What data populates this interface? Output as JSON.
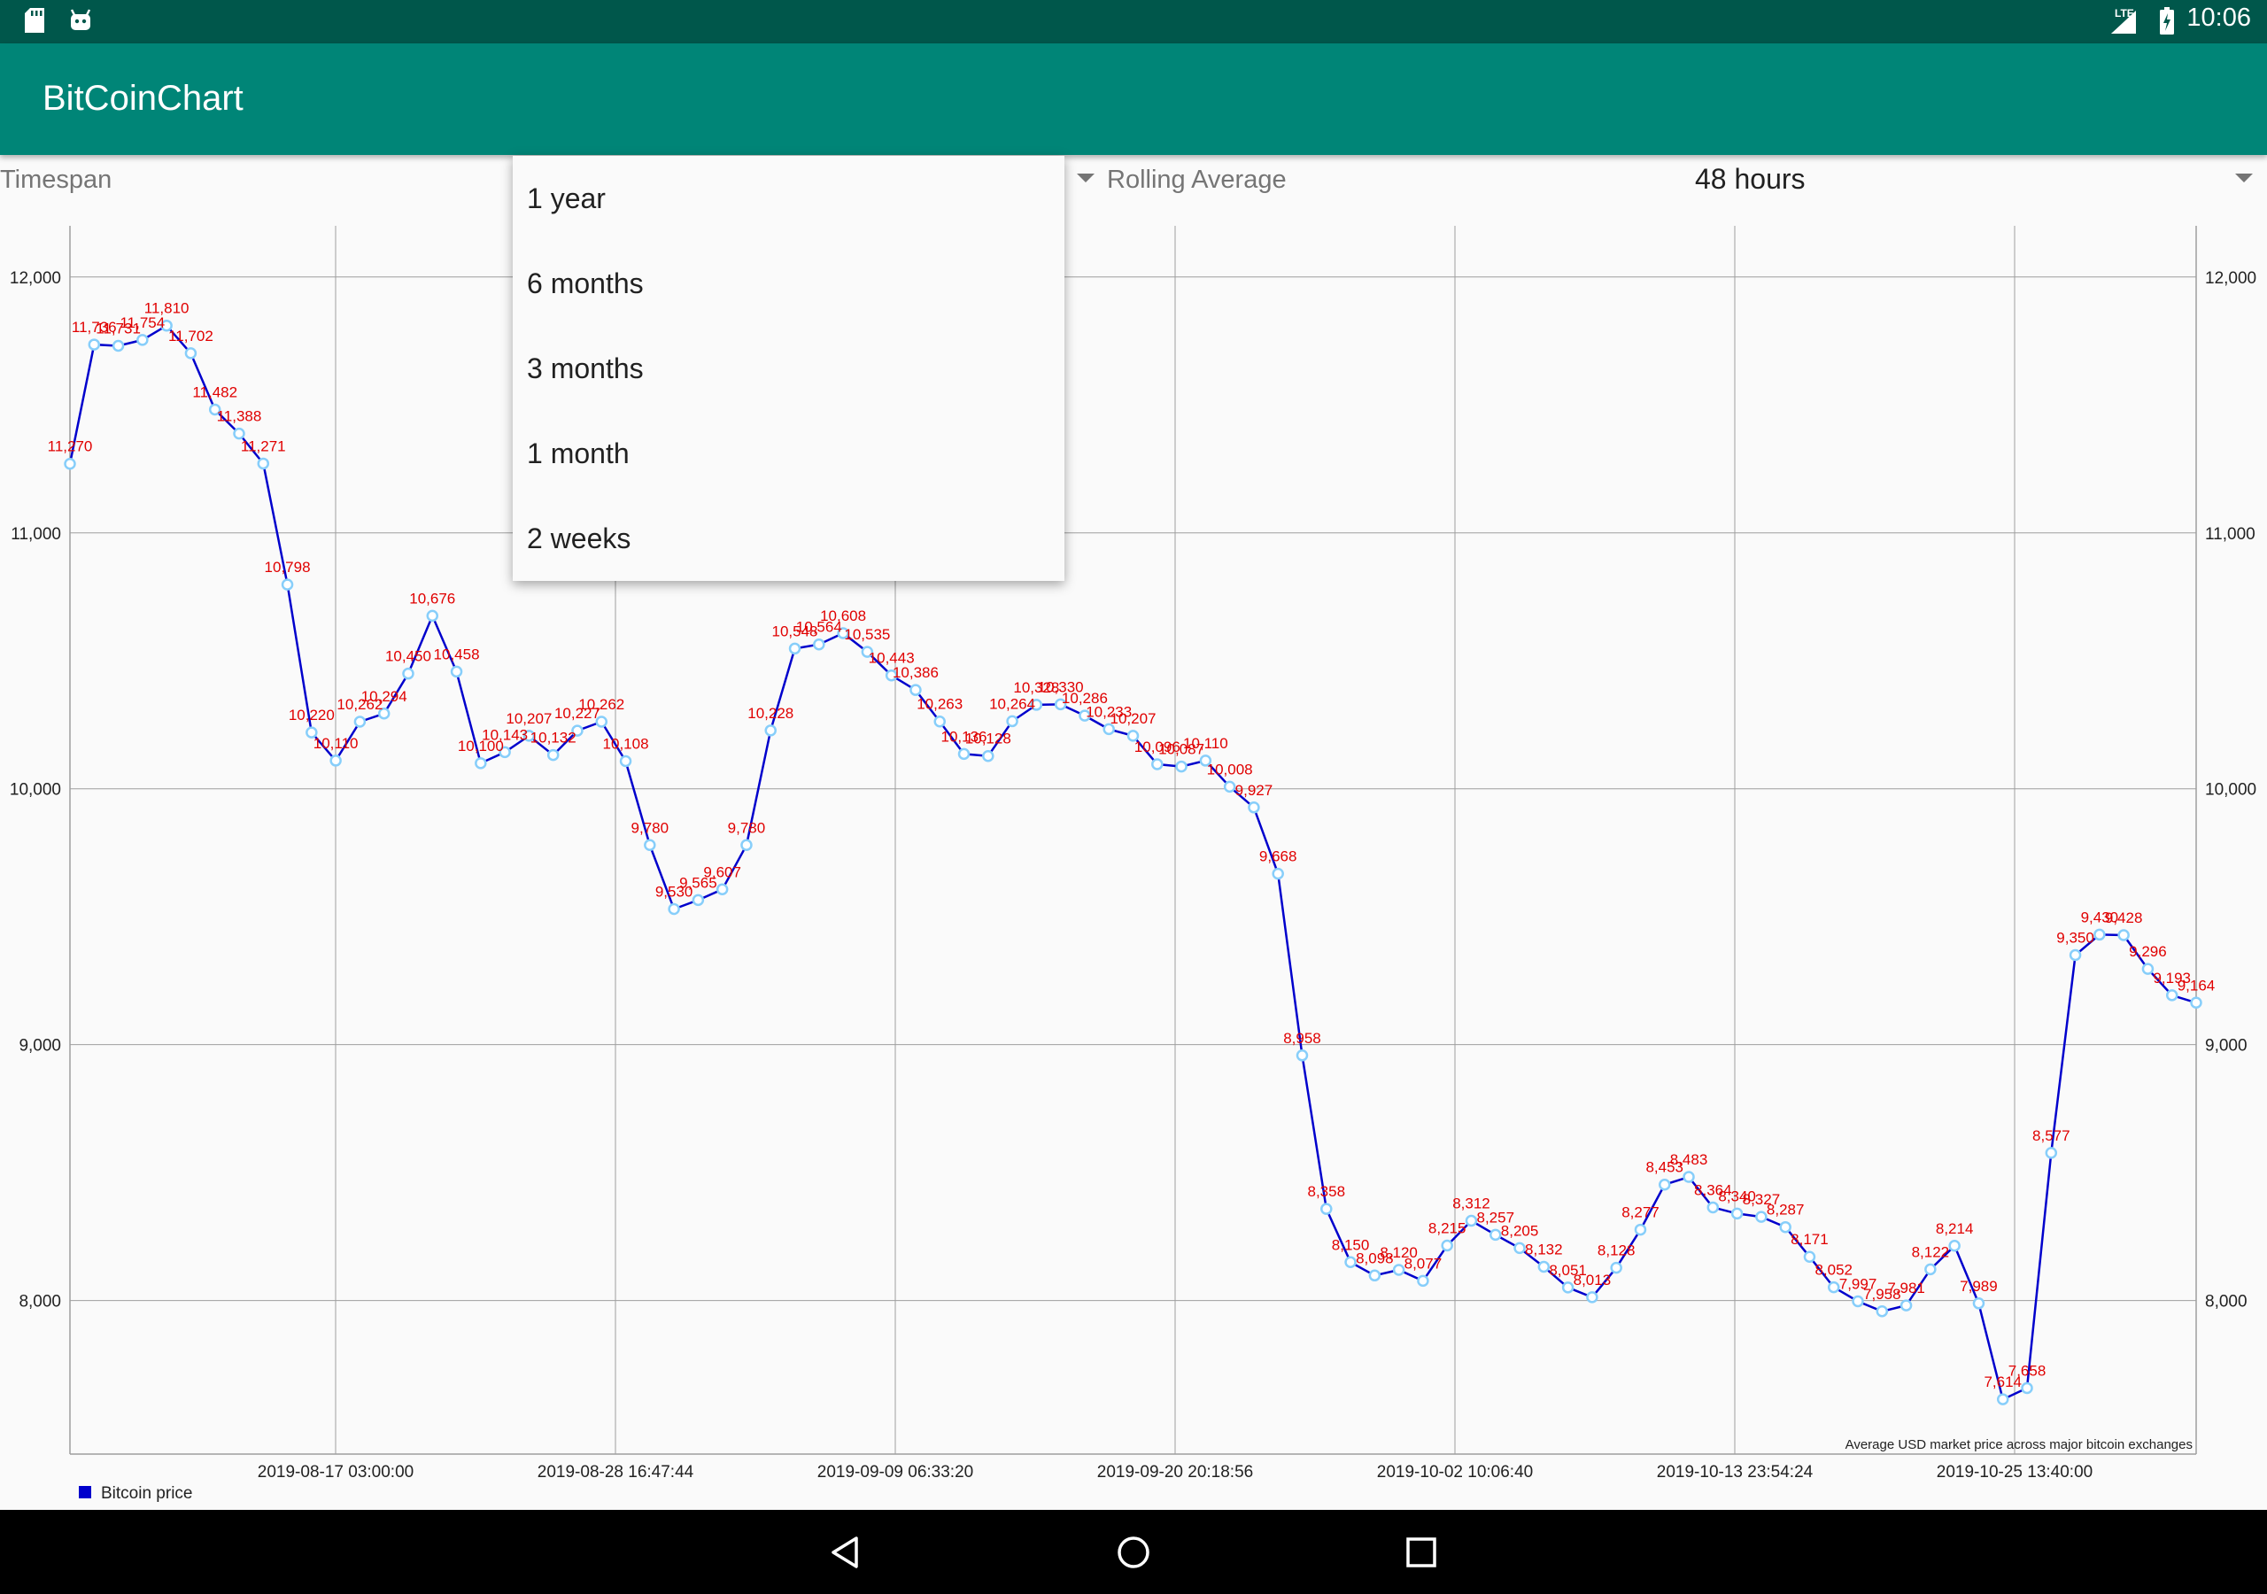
{
  "status_bar": {
    "time": "10:06",
    "network": "LTE",
    "icons": [
      "sd-card-icon",
      "android-icon",
      "signal-icon",
      "battery-charging-icon"
    ]
  },
  "app_bar": {
    "title": "BitCoinChart"
  },
  "controls": {
    "timespan_label": "Timespan",
    "rolling_label": "Rolling Average",
    "rolling_value": "48 hours"
  },
  "timespan_dropdown": {
    "options": [
      "1 year",
      "6 months",
      "3 months",
      "1 month",
      "2 weeks"
    ]
  },
  "nav_bar": {
    "icons": [
      "back-icon",
      "home-icon",
      "recents-icon"
    ]
  },
  "colors": {
    "status_bar": "#00574b",
    "app_bar": "#008577",
    "line": "#0000cc",
    "point": "#87cefa",
    "value_label": "#e00000"
  },
  "chart_data": {
    "type": "line",
    "description": "Average USD market price across major bitcoin exchanges",
    "legend": [
      "Bitcoin price"
    ],
    "legend_position": "bottom-left",
    "grid": true,
    "ylim": [
      7400,
      12200
    ],
    "y_ticks": [
      8000,
      9000,
      10000,
      11000,
      12000
    ],
    "y_tick_labels": [
      "8,000",
      "9,000",
      "10,000",
      "11,000",
      "12,000"
    ],
    "x_tick_labels": [
      "2019-08-17 03:00:00",
      "2019-08-28 16:47:44",
      "2019-09-09 06:33:20",
      "2019-09-20 20:18:56",
      "2019-10-02 10:06:40",
      "2019-10-13 23:54:24",
      "2019-10-25 13:40:00"
    ],
    "series": [
      {
        "name": "Bitcoin price",
        "values": [
          11270,
          11736,
          11731,
          11754,
          11810,
          11702,
          11482,
          11388,
          11271,
          10798,
          10220,
          10110,
          10262,
          10294,
          10450,
          10676,
          10458,
          10100,
          10143,
          10207,
          10132,
          10227,
          10262,
          10108,
          9780,
          9530,
          9565,
          9607,
          9780,
          10228,
          10548,
          10564,
          10608,
          10535,
          10443,
          10386,
          10263,
          10136,
          10128,
          10264,
          10328,
          10330,
          10286,
          10233,
          10207,
          10096,
          10087,
          10110,
          10008,
          9927,
          9668,
          8958,
          8358,
          8150,
          8098,
          8120,
          8077,
          8215,
          8312,
          8257,
          8205,
          8132,
          8051,
          8013,
          8128,
          8277,
          8453,
          8483,
          8364,
          8340,
          8327,
          8287,
          8171,
          8052,
          7997,
          7958,
          7981,
          8122,
          8214,
          7989,
          7614,
          7658,
          8577,
          9350,
          9430,
          9428,
          9296,
          9193,
          9164
        ],
        "labels": [
          "11,270",
          "11,736",
          "11,731",
          "11,754",
          "11,810",
          "11,702",
          "11,482",
          "11,388",
          "11,271",
          "10,798",
          "10,220",
          "10,110",
          "10,262",
          "10,294",
          "10,450",
          "10,676",
          "10,458",
          "10,100",
          "10,143",
          "10,207",
          "10,132",
          "10,227",
          "10,262",
          "10,108",
          "9,780",
          "9,530",
          "9,565",
          "9,607",
          "9,780",
          "10,228",
          "10,548",
          "10,564",
          "10,608",
          "10,535",
          "10,443",
          "10,386",
          "10,263",
          "10,136",
          "10,128",
          "10,264",
          "10,328",
          "10,330",
          "10,286",
          "10,233",
          "10,207",
          "10,096",
          "10,087",
          "10,110",
          "10,008",
          "9,927",
          "9,668",
          "8,958",
          "8,358",
          "8,150",
          "8,098",
          "8,120",
          "8,077",
          "8,215",
          "8,312",
          "8,257",
          "8,205",
          "8,132",
          "8,051",
          "8,013",
          "8,128",
          "8,277",
          "8,453",
          "8,483",
          "8,364",
          "8,340",
          "8,327",
          "8,287",
          "8,171",
          "8,052",
          "7,997",
          "7,958",
          "7,981",
          "8,122",
          "8,214",
          "7,989",
          "7,614",
          "7,658",
          "8,577",
          "9,350",
          "9,430",
          "9,428",
          "9,296",
          "9,193",
          "9,164"
        ]
      }
    ]
  }
}
